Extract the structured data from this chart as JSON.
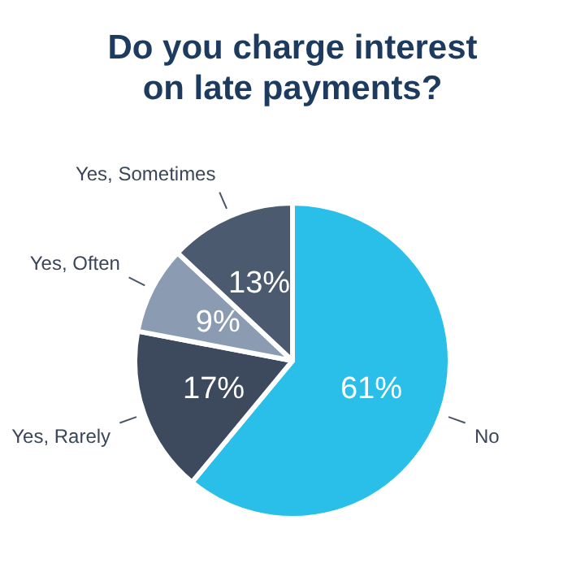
{
  "chart_data": {
    "type": "pie",
    "title": "Do you charge interest\non late payments?",
    "categories": [
      "No",
      "Yes, Rarely",
      "Yes, Often",
      "Yes, Sometimes"
    ],
    "values": [
      61,
      17,
      9,
      13
    ],
    "value_labels": [
      "61%",
      "17%",
      "9%",
      "13%"
    ],
    "colors": [
      "#29bfe8",
      "#3d4a5e",
      "#8a9bb2",
      "#4b5a6e"
    ]
  }
}
